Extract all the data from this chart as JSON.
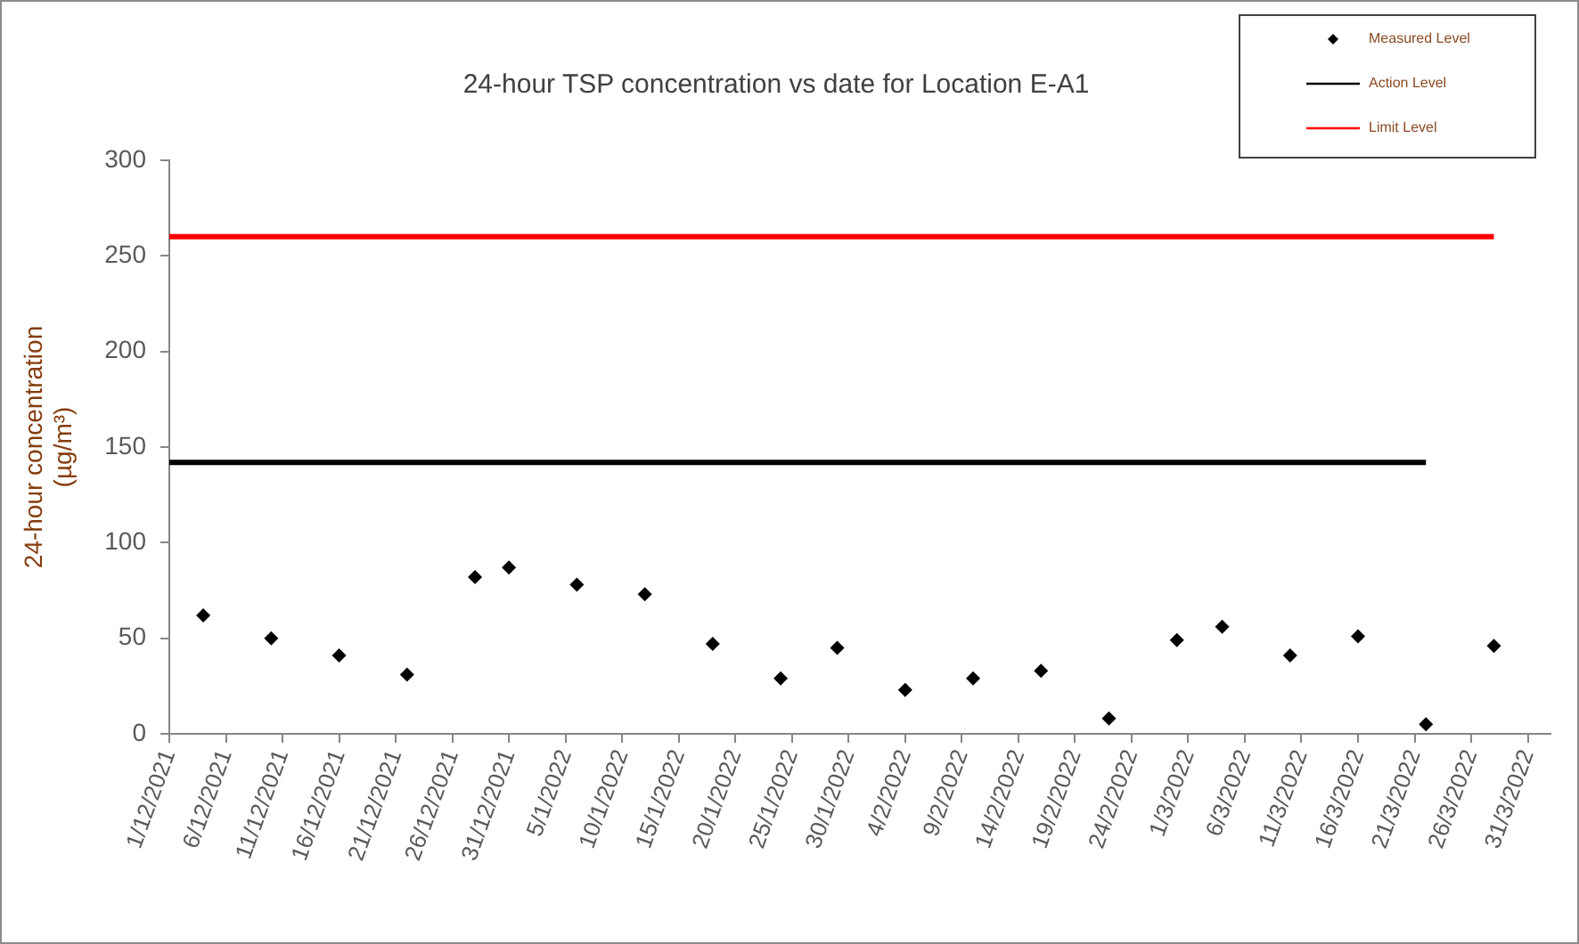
{
  "chart_data": {
    "type": "scatter",
    "title": "24-hour TSP concentration vs date for Location E-A1",
    "ylabel": "24-hour concentration\n(µg/m³)",
    "xlim": [
      "2021-12-01",
      "2022-04-02"
    ],
    "xticks": [
      {
        "value": "2021-12-01",
        "label": "1/12/2021"
      },
      {
        "value": "2021-12-06",
        "label": "6/12/2021"
      },
      {
        "value": "2021-12-11",
        "label": "11/12/2021"
      },
      {
        "value": "2021-12-16",
        "label": "16/12/2021"
      },
      {
        "value": "2021-12-21",
        "label": "21/12/2021"
      },
      {
        "value": "2021-12-26",
        "label": "26/12/2021"
      },
      {
        "value": "2021-12-31",
        "label": "31/12/2021"
      },
      {
        "value": "2022-01-05",
        "label": "5/1/2022"
      },
      {
        "value": "2022-01-10",
        "label": "10/1/2022"
      },
      {
        "value": "2022-01-15",
        "label": "15/1/2022"
      },
      {
        "value": "2022-01-20",
        "label": "20/1/2022"
      },
      {
        "value": "2022-01-25",
        "label": "25/1/2022"
      },
      {
        "value": "2022-01-30",
        "label": "30/1/2022"
      },
      {
        "value": "2022-02-04",
        "label": "4/2/2022"
      },
      {
        "value": "2022-02-09",
        "label": "9/2/2022"
      },
      {
        "value": "2022-02-14",
        "label": "14/2/2022"
      },
      {
        "value": "2022-02-19",
        "label": "19/2/2022"
      },
      {
        "value": "2022-02-24",
        "label": "24/2/2022"
      },
      {
        "value": "2022-03-01",
        "label": "1/3/2022"
      },
      {
        "value": "2022-03-06",
        "label": "6/3/2022"
      },
      {
        "value": "2022-03-11",
        "label": "11/3/2022"
      },
      {
        "value": "2022-03-16",
        "label": "16/3/2022"
      },
      {
        "value": "2022-03-21",
        "label": "21/3/2022"
      },
      {
        "value": "2022-03-26",
        "label": "26/3/2022"
      },
      {
        "value": "2022-03-31",
        "label": "31/3/2022"
      }
    ],
    "ylim": [
      0,
      300
    ],
    "yticks": [
      0,
      50,
      100,
      150,
      200,
      250,
      300
    ],
    "grid": false,
    "legend": "top right",
    "marker": "diamond",
    "series": [
      {
        "name": "Measured Level",
        "color": "#000000",
        "x": [
          "2021-12-04",
          "2021-12-10",
          "2021-12-16",
          "2021-12-22",
          "2021-12-28",
          "2021-12-31",
          "2022-01-06",
          "2022-01-12",
          "2022-01-18",
          "2022-01-24",
          "2022-01-29",
          "2022-02-04",
          "2022-02-10",
          "2022-02-16",
          "2022-02-22",
          "2022-02-28",
          "2022-03-04",
          "2022-03-10",
          "2022-03-16",
          "2022-03-22",
          "2022-03-28"
        ],
        "values": [
          62,
          50,
          41,
          31,
          82,
          87,
          78,
          73,
          47,
          29,
          45,
          23,
          29,
          33,
          8,
          49,
          56,
          41,
          51,
          5,
          46
        ]
      },
      {
        "name": "Action Level",
        "type": "line",
        "marker": "none",
        "color": "#000000",
        "x": [
          "2021-12-01",
          "2022-03-22"
        ],
        "values": [
          142,
          142
        ]
      },
      {
        "name": "Limit Level",
        "type": "line",
        "marker": "none",
        "color": "#ff0000",
        "x": [
          "2021-12-01",
          "2022-03-28"
        ],
        "values": [
          260,
          260
        ]
      }
    ]
  }
}
